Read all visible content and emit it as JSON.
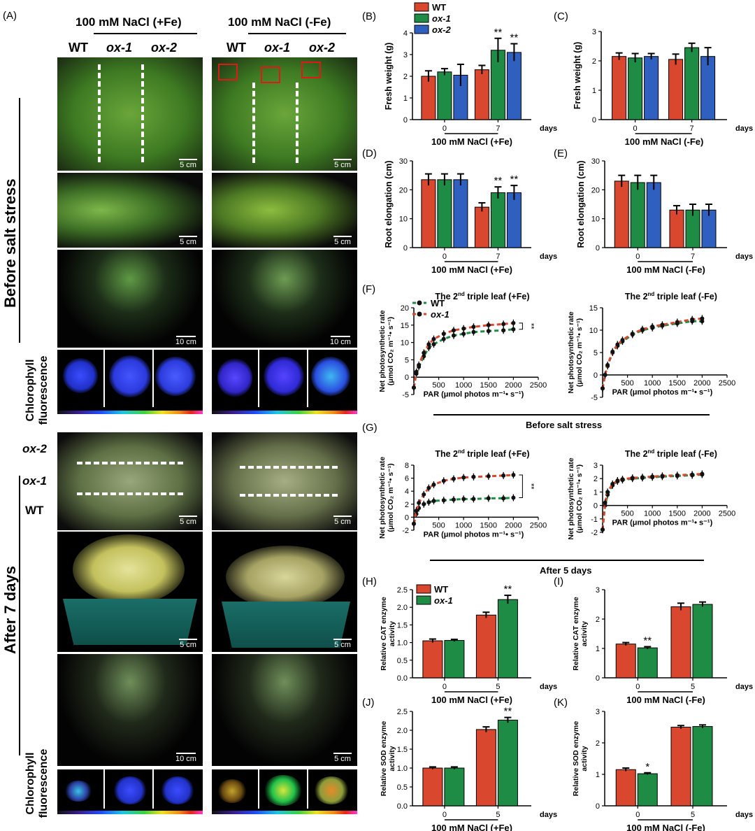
{
  "panel_A": {
    "label": "(A)",
    "header_fe_plus": "100 mM NaCl (+Fe)",
    "header_fe_minus": "100 mM NaCl (-Fe)",
    "genotypes": [
      "WT",
      "ox-1",
      "ox-2"
    ],
    "side_before": "Before salt stress",
    "side_after": "After 7 days",
    "chlorophyll": "Chlorophyll fluorescence",
    "row_labels": [
      "ox-2",
      "ox-1",
      "WT"
    ],
    "scale_5cm": "5 cm",
    "scale_10cm": "10 cm"
  },
  "charts_common": {
    "days": "days",
    "legend3": [
      "WT",
      "ox-1",
      "ox-2"
    ],
    "legend2": [
      "WT",
      "ox-1"
    ],
    "colors": {
      "WT": "#d9472f",
      "ox1": "#1f8c45",
      "ox2": "#2f5fbf"
    },
    "sig2": "**",
    "sig1": "*",
    "x_fe_plus": "100 mM NaCl (+Fe)",
    "x_fe_minus": "100 mM NaCl  (-Fe)",
    "leaf_title_plus_a": "The 2",
    "leaf_title_sup": "nd",
    "leaf_title_plus_b": " triple leaf   (+Fe)",
    "leaf_title_minus_b": " triple leaf   (-Fe)",
    "par_label": "PAR (μmol photos  m⁻¹• s⁻¹)",
    "photo_ylabel_1": "Net photosynthetic rate",
    "photo_ylabel_2": "(μmol CO₂ m⁻¹• s⁻¹)",
    "before_salt": "Before salt stress",
    "after_5": "After 5 days"
  },
  "chart_data": [
    {
      "id": "B",
      "type": "bar",
      "title": "(B)",
      "ylabel": "Fresh weight (g)",
      "ylim": [
        0,
        4
      ],
      "yticks": [
        0,
        1,
        2,
        3,
        4
      ],
      "categories": [
        "0",
        "7"
      ],
      "xlabel": "100 mM NaCl (+Fe)",
      "series": [
        {
          "name": "WT",
          "values": [
            2.0,
            2.3
          ],
          "err": [
            0.25,
            0.2
          ]
        },
        {
          "name": "ox-1",
          "values": [
            2.2,
            3.2
          ],
          "err": [
            0.15,
            0.55
          ]
        },
        {
          "name": "ox-2",
          "values": [
            2.05,
            3.1
          ],
          "err": [
            0.5,
            0.4
          ]
        }
      ],
      "annotations": [
        {
          "cat": 1,
          "series": 1,
          "text": "**"
        },
        {
          "cat": 1,
          "series": 2,
          "text": "**"
        }
      ]
    },
    {
      "id": "C",
      "type": "bar",
      "title": "(C)",
      "ylabel": "Fresh weight (g)",
      "ylim": [
        0,
        3
      ],
      "yticks": [
        0,
        1,
        2,
        3
      ],
      "categories": [
        "0",
        "7"
      ],
      "xlabel": "100 mM NaCl  (-Fe)",
      "series": [
        {
          "name": "WT",
          "values": [
            2.15,
            2.05
          ],
          "err": [
            0.12,
            0.18
          ]
        },
        {
          "name": "ox-1",
          "values": [
            2.1,
            2.45
          ],
          "err": [
            0.15,
            0.15
          ]
        },
        {
          "name": "ox-2",
          "values": [
            2.15,
            2.15
          ],
          "err": [
            0.1,
            0.3
          ]
        }
      ],
      "annotations": []
    },
    {
      "id": "D",
      "type": "bar",
      "title": "(D)",
      "ylabel": "Root elongation (cm)",
      "ylim": [
        0,
        30
      ],
      "yticks": [
        0,
        10,
        20,
        30
      ],
      "categories": [
        "0",
        "7"
      ],
      "xlabel": "100 mM NaCl (+Fe)",
      "series": [
        {
          "name": "WT",
          "values": [
            23.5,
            14
          ],
          "err": [
            2,
            1.5
          ]
        },
        {
          "name": "ox-1",
          "values": [
            23.5,
            19
          ],
          "err": [
            2,
            2
          ]
        },
        {
          "name": "ox-2",
          "values": [
            23.5,
            19
          ],
          "err": [
            2,
            2.5
          ]
        }
      ],
      "annotations": [
        {
          "cat": 1,
          "series": 1,
          "text": "**"
        },
        {
          "cat": 1,
          "series": 2,
          "text": "**"
        }
      ]
    },
    {
      "id": "E",
      "type": "bar",
      "title": "(E)",
      "ylabel": "Root elongation (cm)",
      "ylim": [
        0,
        30
      ],
      "yticks": [
        0,
        10,
        20,
        30
      ],
      "categories": [
        "0",
        "7"
      ],
      "xlabel": "100 mM NaCl  (-Fe)",
      "series": [
        {
          "name": "WT",
          "values": [
            23,
            13
          ],
          "err": [
            2,
            1.5
          ]
        },
        {
          "name": "ox-1",
          "values": [
            22.5,
            13
          ],
          "err": [
            2.5,
            2
          ]
        },
        {
          "name": "ox-2",
          "values": [
            22.5,
            13
          ],
          "err": [
            2.5,
            2
          ]
        }
      ],
      "annotations": []
    },
    {
      "id": "F1",
      "type": "scatter",
      "title": "(F)",
      "ylim": [
        -5,
        20
      ],
      "yticks": [
        -5,
        0,
        5,
        10,
        15,
        20
      ],
      "xlim": [
        0,
        2500
      ],
      "xticks": [
        500,
        1000,
        1500,
        2000,
        2500
      ],
      "x": [
        0,
        50,
        100,
        200,
        300,
        400,
        600,
        800,
        1000,
        1200,
        1500,
        1800,
        2000
      ],
      "series": [
        {
          "name": "WT",
          "values": [
            -3,
            1,
            3,
            6,
            8.5,
            9.5,
            11,
            12,
            12.5,
            13,
            13.3,
            13.5,
            13.8
          ]
        },
        {
          "name": "ox-1",
          "values": [
            -3,
            1.5,
            3.5,
            7,
            9.5,
            11,
            12.5,
            13.5,
            14,
            14.5,
            15,
            15.3,
            15.6
          ]
        }
      ],
      "annotations": [
        {
          "text": "**"
        }
      ]
    },
    {
      "id": "F2",
      "type": "scatter",
      "title": "",
      "ylim": [
        -5,
        15
      ],
      "yticks": [
        -5,
        0,
        5,
        10,
        15
      ],
      "xlim": [
        0,
        2500
      ],
      "xticks": [
        500,
        1000,
        1500,
        2000,
        2500
      ],
      "x": [
        0,
        50,
        100,
        200,
        300,
        400,
        600,
        800,
        1000,
        1200,
        1500,
        1800,
        2000
      ],
      "series": [
        {
          "name": "WT",
          "values": [
            -3,
            0,
            2,
            5,
            6.5,
            7.5,
            9,
            10,
            10.5,
            11,
            11.5,
            12,
            12
          ]
        },
        {
          "name": "ox-1",
          "values": [
            -3,
            0,
            2.2,
            5.2,
            6.8,
            7.8,
            9.2,
            10.2,
            10.8,
            11.2,
            11.8,
            12.4,
            12.6
          ]
        }
      ],
      "annotations": []
    },
    {
      "id": "G1",
      "type": "scatter",
      "title": "(G)",
      "ylim": [
        -2,
        8
      ],
      "yticks": [
        -2,
        0,
        2,
        4,
        6,
        8
      ],
      "xlim": [
        0,
        2500
      ],
      "xticks": [
        500,
        1000,
        1500,
        2000,
        2500
      ],
      "x": [
        0,
        50,
        100,
        200,
        300,
        400,
        600,
        800,
        1000,
        1200,
        1500,
        1800,
        2000
      ],
      "series": [
        {
          "name": "WT",
          "values": [
            -1,
            0.5,
            1.4,
            2,
            2.3,
            2.5,
            2.6,
            2.7,
            2.8,
            2.8,
            2.9,
            2.9,
            3
          ]
        },
        {
          "name": "ox-1",
          "values": [
            -1,
            1,
            2.2,
            3.5,
            4.5,
            5,
            5.6,
            5.9,
            6.1,
            6.2,
            6.3,
            6.4,
            6.5
          ]
        }
      ],
      "annotations": [
        {
          "text": "**"
        }
      ]
    },
    {
      "id": "G2",
      "type": "scatter",
      "title": "",
      "ylim": [
        -2,
        3
      ],
      "yticks": [
        -2,
        -1,
        0,
        1,
        2,
        3
      ],
      "xlim": [
        0,
        2500
      ],
      "xticks": [
        500,
        1000,
        1500,
        2000,
        2500
      ],
      "x": [
        0,
        50,
        100,
        200,
        300,
        400,
        600,
        800,
        1000,
        1200,
        1500,
        1800,
        2000
      ],
      "series": [
        {
          "name": "WT",
          "values": [
            -1.8,
            0,
            0.8,
            1.5,
            1.8,
            1.9,
            2,
            2.05,
            2.1,
            2.15,
            2.2,
            2.25,
            2.3
          ]
        },
        {
          "name": "ox-1",
          "values": [
            -1.8,
            0.2,
            1,
            1.6,
            1.85,
            1.95,
            2.05,
            2.1,
            2.15,
            2.2,
            2.25,
            2.3,
            2.35
          ]
        }
      ],
      "annotations": []
    },
    {
      "id": "H",
      "type": "bar",
      "title": "(H)",
      "ylabel": "Relative CAT enzyme activity",
      "ylim": [
        0,
        2.5
      ],
      "yticks": [
        0,
        0.5,
        1.0,
        1.5,
        2.0,
        2.5
      ],
      "categories": [
        "0",
        "5"
      ],
      "xlabel": "100 mM NaCl (+Fe)",
      "series": [
        {
          "name": "WT",
          "values": [
            1.05,
            1.78
          ],
          "err": [
            0.05,
            0.08
          ]
        },
        {
          "name": "ox-1",
          "values": [
            1.06,
            2.22
          ],
          "err": [
            0.03,
            0.12
          ]
        }
      ],
      "annotations": [
        {
          "cat": 1,
          "series": 1,
          "text": "**"
        }
      ]
    },
    {
      "id": "I",
      "type": "bar",
      "title": "(I)",
      "ylabel": "Relative CAT enzyme activity",
      "ylim": [
        0,
        3
      ],
      "yticks": [
        0,
        1,
        2,
        3
      ],
      "categories": [
        "0",
        "5"
      ],
      "xlabel": "100 mM NaCl (-Fe)",
      "series": [
        {
          "name": "WT",
          "values": [
            1.15,
            2.42
          ],
          "err": [
            0.05,
            0.12
          ]
        },
        {
          "name": "ox-1",
          "values": [
            1.02,
            2.5
          ],
          "err": [
            0.04,
            0.08
          ]
        }
      ],
      "annotations": [
        {
          "cat": 0,
          "series": 1,
          "text": "**"
        }
      ]
    },
    {
      "id": "J",
      "type": "bar",
      "title": "(J)",
      "ylabel": "Relative SOD enzyme activity",
      "ylim": [
        0,
        2.5
      ],
      "yticks": [
        0,
        0.5,
        1.0,
        1.5,
        2.0,
        2.5
      ],
      "categories": [
        "0",
        "5"
      ],
      "xlabel": "100 mM NaCl (+Fe)",
      "series": [
        {
          "name": "WT",
          "values": [
            1.0,
            2.02
          ],
          "err": [
            0.03,
            0.07
          ]
        },
        {
          "name": "ox-1",
          "values": [
            1.0,
            2.27
          ],
          "err": [
            0.03,
            0.07
          ]
        }
      ],
      "annotations": [
        {
          "cat": 1,
          "series": 1,
          "text": "**"
        }
      ]
    },
    {
      "id": "K",
      "type": "bar",
      "title": "(K)",
      "ylabel": "Relative SOD enzyme activity",
      "ylim": [
        0,
        3
      ],
      "yticks": [
        0,
        1,
        2,
        3
      ],
      "categories": [
        "0",
        "5"
      ],
      "xlabel": "100 mM NaCl (-Fe)",
      "series": [
        {
          "name": "WT",
          "values": [
            1.15,
            2.5
          ],
          "err": [
            0.05,
            0.05
          ]
        },
        {
          "name": "ox-1",
          "values": [
            1.02,
            2.52
          ],
          "err": [
            0.03,
            0.05
          ]
        }
      ],
      "annotations": [
        {
          "cat": 0,
          "series": 1,
          "text": "*"
        }
      ]
    }
  ]
}
